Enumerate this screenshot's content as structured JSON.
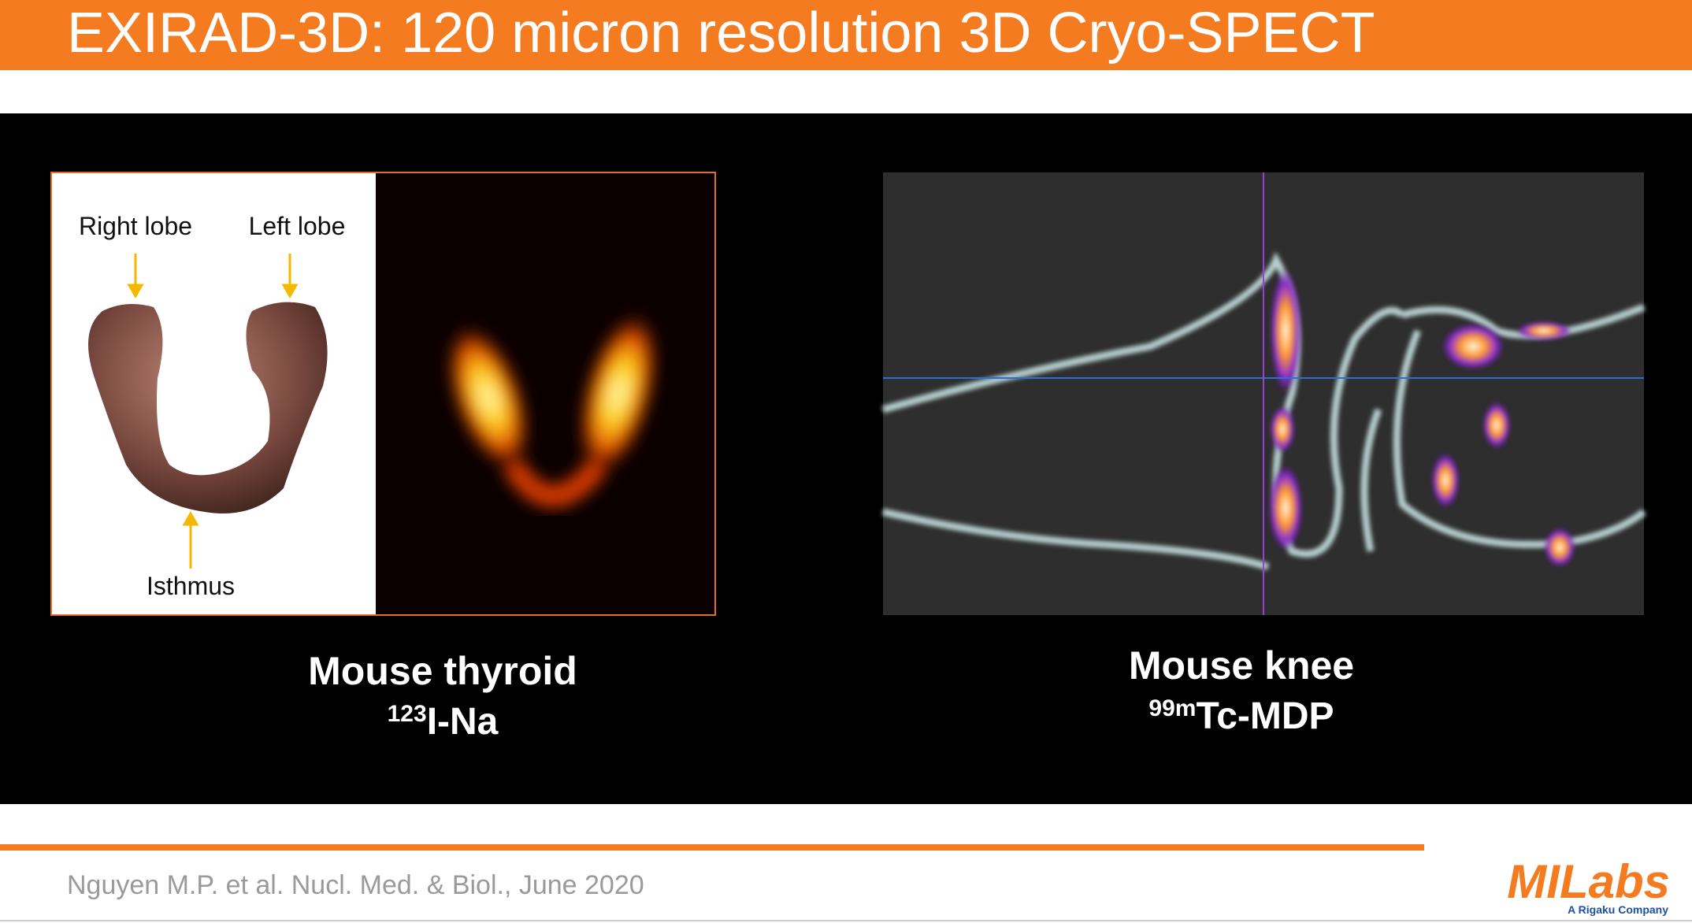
{
  "header": {
    "title": "EXIRAD-3D: 120 micron resolution 3D Cryo-SPECT"
  },
  "panels": [
    {
      "image_labels": [
        "Right lobe",
        "Left lobe",
        "Isthmus"
      ],
      "caption": "Mouse thyroid",
      "isotope_superscript": "123",
      "isotope": "I-Na"
    },
    {
      "caption": "Mouse knee",
      "isotope_superscript": "99m",
      "isotope": "Tc-MDP"
    }
  ],
  "footer": {
    "citation": "Nguyen M.P. et al.  Nucl. Med. & Biol., June 2020",
    "logo": "MILabs",
    "logo_tagline": "A Rigaku Company"
  }
}
